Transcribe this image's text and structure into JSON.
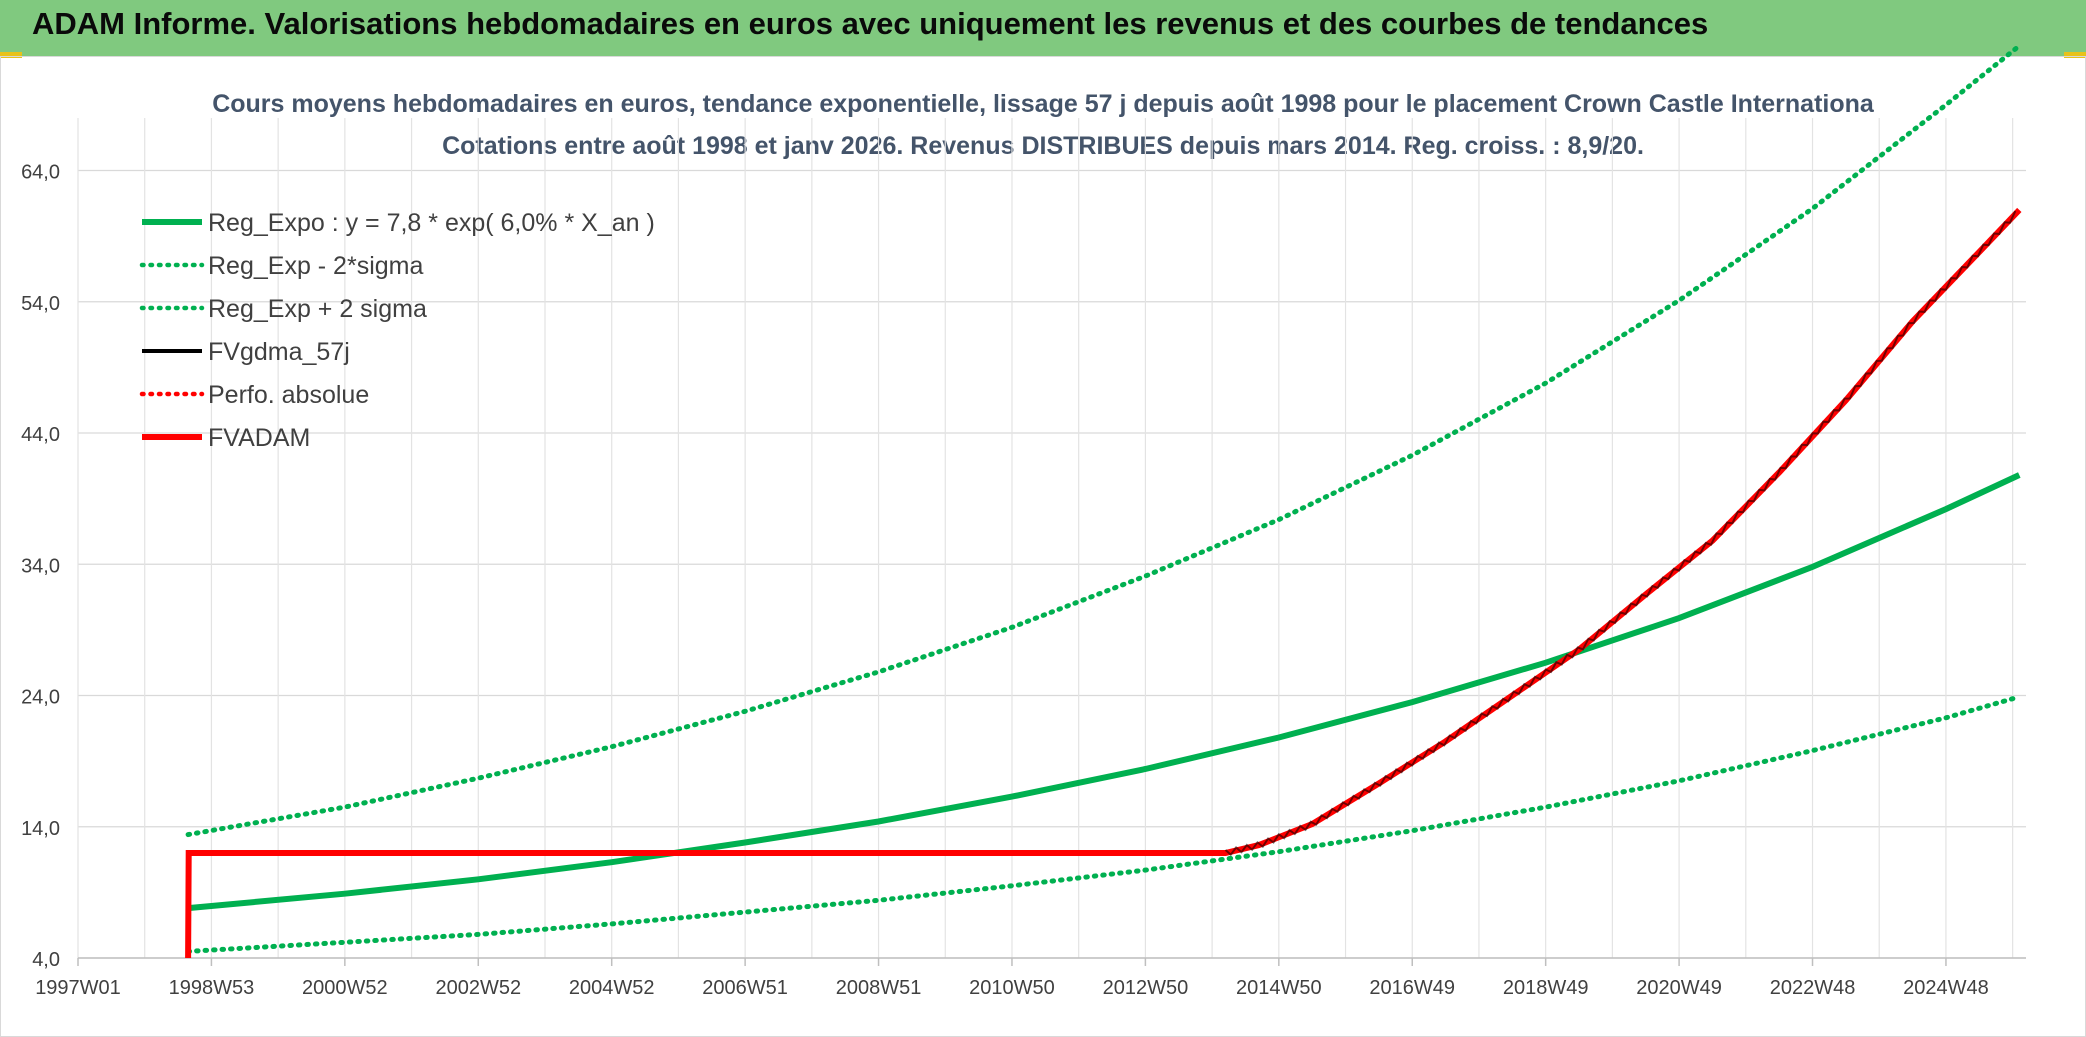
{
  "header": {
    "title": "ADAM Informe. Valorisations hebdomadaires en euros avec uniquement les revenus et des courbes de tendances"
  },
  "chart_data": {
    "type": "line",
    "title": "Cours moyens hebdomadaires en euros, tendance exponentielle, lissage 57 j depuis août 1998 pour le placement Crown Castle Internationa",
    "subtitle": "Cotations entre août 1998 et janv 2026. Revenus DISTRIBUES depuis mars 2014. Reg. croiss. : 8,9/20.",
    "xlabel": "",
    "ylabel": "",
    "x_range": [
      1997.0,
      2026.2
    ],
    "ylim": [
      4.0,
      68.0
    ],
    "y_ticks": [
      "4,0",
      "14,0",
      "24,0",
      "34,0",
      "44,0",
      "54,0",
      "64,0"
    ],
    "y_tick_values": [
      4,
      14,
      24,
      34,
      44,
      54,
      64
    ],
    "x_ticks": [
      "1997W01",
      "1998W53",
      "2000W52",
      "2002W52",
      "2004W52",
      "2006W51",
      "2008W51",
      "2010W50",
      "2012W50",
      "2014W50",
      "2016W49",
      "2018W49",
      "2020W49",
      "2022W48",
      "2024W48"
    ],
    "x_tick_values": [
      1997.0,
      1999.0,
      2001.0,
      2003.0,
      2005.0,
      2007.0,
      2009.0,
      2011.0,
      2013.0,
      2015.0,
      2017.0,
      2019.0,
      2021.0,
      2023.0,
      2025.0
    ],
    "legend": [
      {
        "name": "Reg_Expo : y = 7,8 * exp( 6,0% *  X_an )",
        "color": "#00b050",
        "style": "solid-thick"
      },
      {
        "name": "Reg_Exp - 2*sigma",
        "color": "#00b050",
        "style": "dotted"
      },
      {
        "name": "Reg_Exp + 2 sigma",
        "color": "#00b050",
        "style": "dotted"
      },
      {
        "name": "FVgdma_57j",
        "color": "#000000",
        "style": "solid"
      },
      {
        "name": "Perfo. absolue",
        "color": "#ff0000",
        "style": "dotted"
      },
      {
        "name": "FVADAM",
        "color": "#ff0000",
        "style": "solid-thick"
      }
    ],
    "series": [
      {
        "name": "Reg_Expo",
        "x": [
          1998.65,
          2001,
          2003,
          2005,
          2007,
          2009,
          2011,
          2013,
          2015,
          2017,
          2019,
          2021,
          2023,
          2025,
          2026.1
        ],
        "values": [
          7.8,
          8.9,
          10.0,
          11.3,
          12.8,
          14.4,
          16.3,
          18.4,
          20.8,
          23.5,
          26.5,
          29.9,
          33.8,
          38.2,
          40.8
        ]
      },
      {
        "name": "Reg_Exp - 2*sigma",
        "x": [
          1998.65,
          2001,
          2003,
          2005,
          2007,
          2009,
          2011,
          2013,
          2015,
          2017,
          2019,
          2021,
          2023,
          2025,
          2026.1
        ],
        "values": [
          4.5,
          5.2,
          5.8,
          6.6,
          7.5,
          8.4,
          9.5,
          10.7,
          12.1,
          13.7,
          15.5,
          17.5,
          19.8,
          22.3,
          23.9
        ]
      },
      {
        "name": "Reg_Exp + 2 sigma",
        "x": [
          1998.65,
          2001,
          2003,
          2005,
          2007,
          2009,
          2011,
          2013,
          2015,
          2017,
          2019,
          2021,
          2023,
          2025,
          2026.1
        ],
        "values": [
          13.4,
          15.5,
          17.7,
          20.1,
          22.8,
          25.8,
          29.2,
          33.1,
          37.4,
          42.3,
          47.8,
          54.1,
          61.1,
          69.0,
          73.5
        ]
      },
      {
        "name": "FVADAM",
        "x": [
          1998.65,
          1998.66,
          2005,
          2010,
          2014.2,
          2014.7,
          2015.5,
          2016.5,
          2017.5,
          2018.5,
          2019.5,
          2020.5,
          2021.5,
          2022.5,
          2023.5,
          2024.5,
          2025.5,
          2026.1
        ],
        "values": [
          4.0,
          12.0,
          12.0,
          12.0,
          12.0,
          12.6,
          14.2,
          17.3,
          20.5,
          24.0,
          27.5,
          31.7,
          35.8,
          41.0,
          46.5,
          52.5,
          57.8,
          61.0
        ]
      }
    ]
  }
}
